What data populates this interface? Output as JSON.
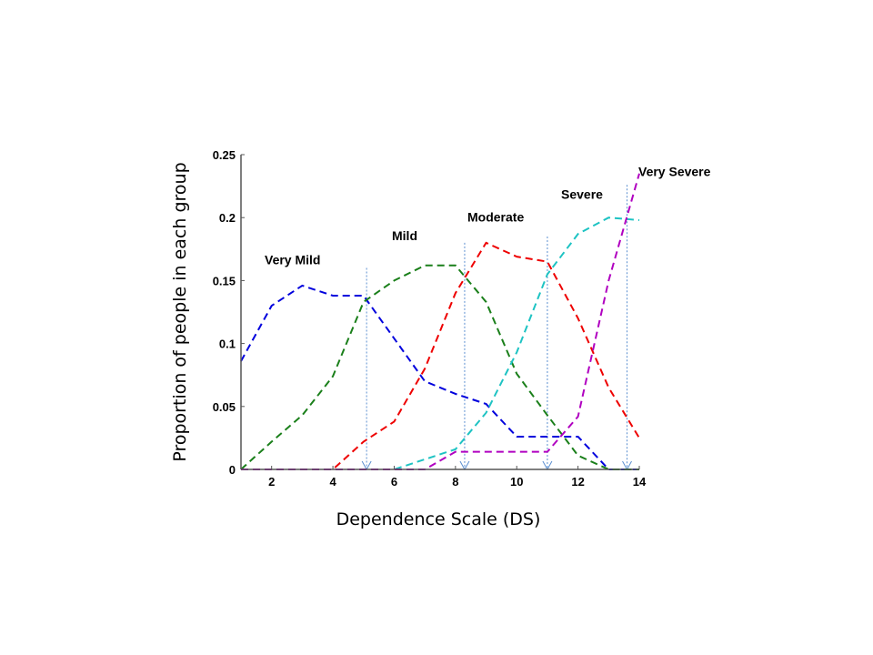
{
  "chart_data": {
    "type": "line",
    "title": "",
    "xlabel": "Dependence Scale (DS)",
    "ylabel": "Proportion of people in each group",
    "xlim": [
      1,
      14
    ],
    "ylim": [
      0,
      0.25
    ],
    "xticks": [
      "2",
      "4",
      "6",
      "8",
      "10",
      "12",
      "14"
    ],
    "xtick_values": [
      2,
      4,
      6,
      8,
      10,
      12,
      14
    ],
    "yticks": [
      "0",
      "0.05",
      "0.1",
      "0.15",
      "0.2",
      "0.25"
    ],
    "ytick_values": [
      0,
      0.05,
      0.1,
      0.15,
      0.2,
      0.25
    ],
    "grid": false,
    "x": [
      1,
      2,
      3,
      4,
      5,
      6,
      7,
      8,
      9,
      10,
      11,
      12,
      13,
      14
    ],
    "series": [
      {
        "name": "Very Mild",
        "color": "#0000dd",
        "values": [
          0.086,
          0.13,
          0.146,
          0.138,
          0.138,
          0.104,
          0.07,
          0.06,
          0.052,
          0.026,
          0.026,
          0.026,
          0,
          0
        ]
      },
      {
        "name": "Mild",
        "color": "#1a7f1a",
        "values": [
          0,
          0.022,
          0.043,
          0.074,
          0.133,
          0.15,
          0.162,
          0.162,
          0.133,
          0.076,
          0.043,
          0.011,
          0,
          0
        ]
      },
      {
        "name": "Moderate",
        "color": "#ee0000",
        "values": [
          0,
          0,
          0,
          0,
          0.022,
          0.038,
          0.08,
          0.14,
          0.18,
          0.169,
          0.165,
          0.12,
          0.065,
          0.025
        ]
      },
      {
        "name": "Severe",
        "color": "#1ec3c3",
        "values": [
          0,
          0,
          0,
          0,
          0,
          0,
          0.008,
          0.016,
          0.045,
          0.093,
          0.155,
          0.187,
          0.2,
          0.198
        ]
      },
      {
        "name": "Very Severe",
        "color": "#b000c0",
        "values": [
          0,
          0,
          0,
          0,
          0,
          0,
          0,
          0.014,
          0.014,
          0.014,
          0.014,
          0.042,
          0.15,
          0.235
        ]
      }
    ],
    "annotations": [
      {
        "text": "Very Mild",
        "x": 2.8,
        "y": 0.163
      },
      {
        "text": "Mild",
        "x": 5.9,
        "y": 0.182
      },
      {
        "text": "Moderate",
        "x": 8.6,
        "y": 0.197
      },
      {
        "text": "Severe",
        "x": 11.5,
        "y": 0.215
      },
      {
        "text": "Very Severe",
        "x": 14.0,
        "y": 0.233
      }
    ],
    "threshold_arrows": [
      {
        "x": 5.1,
        "from": 0.16
      },
      {
        "x": 8.3,
        "from": 0.18
      },
      {
        "x": 11.0,
        "from": 0.185
      },
      {
        "x": 13.6,
        "from": 0.226
      }
    ],
    "arrow_color": "#5b8fd0"
  }
}
